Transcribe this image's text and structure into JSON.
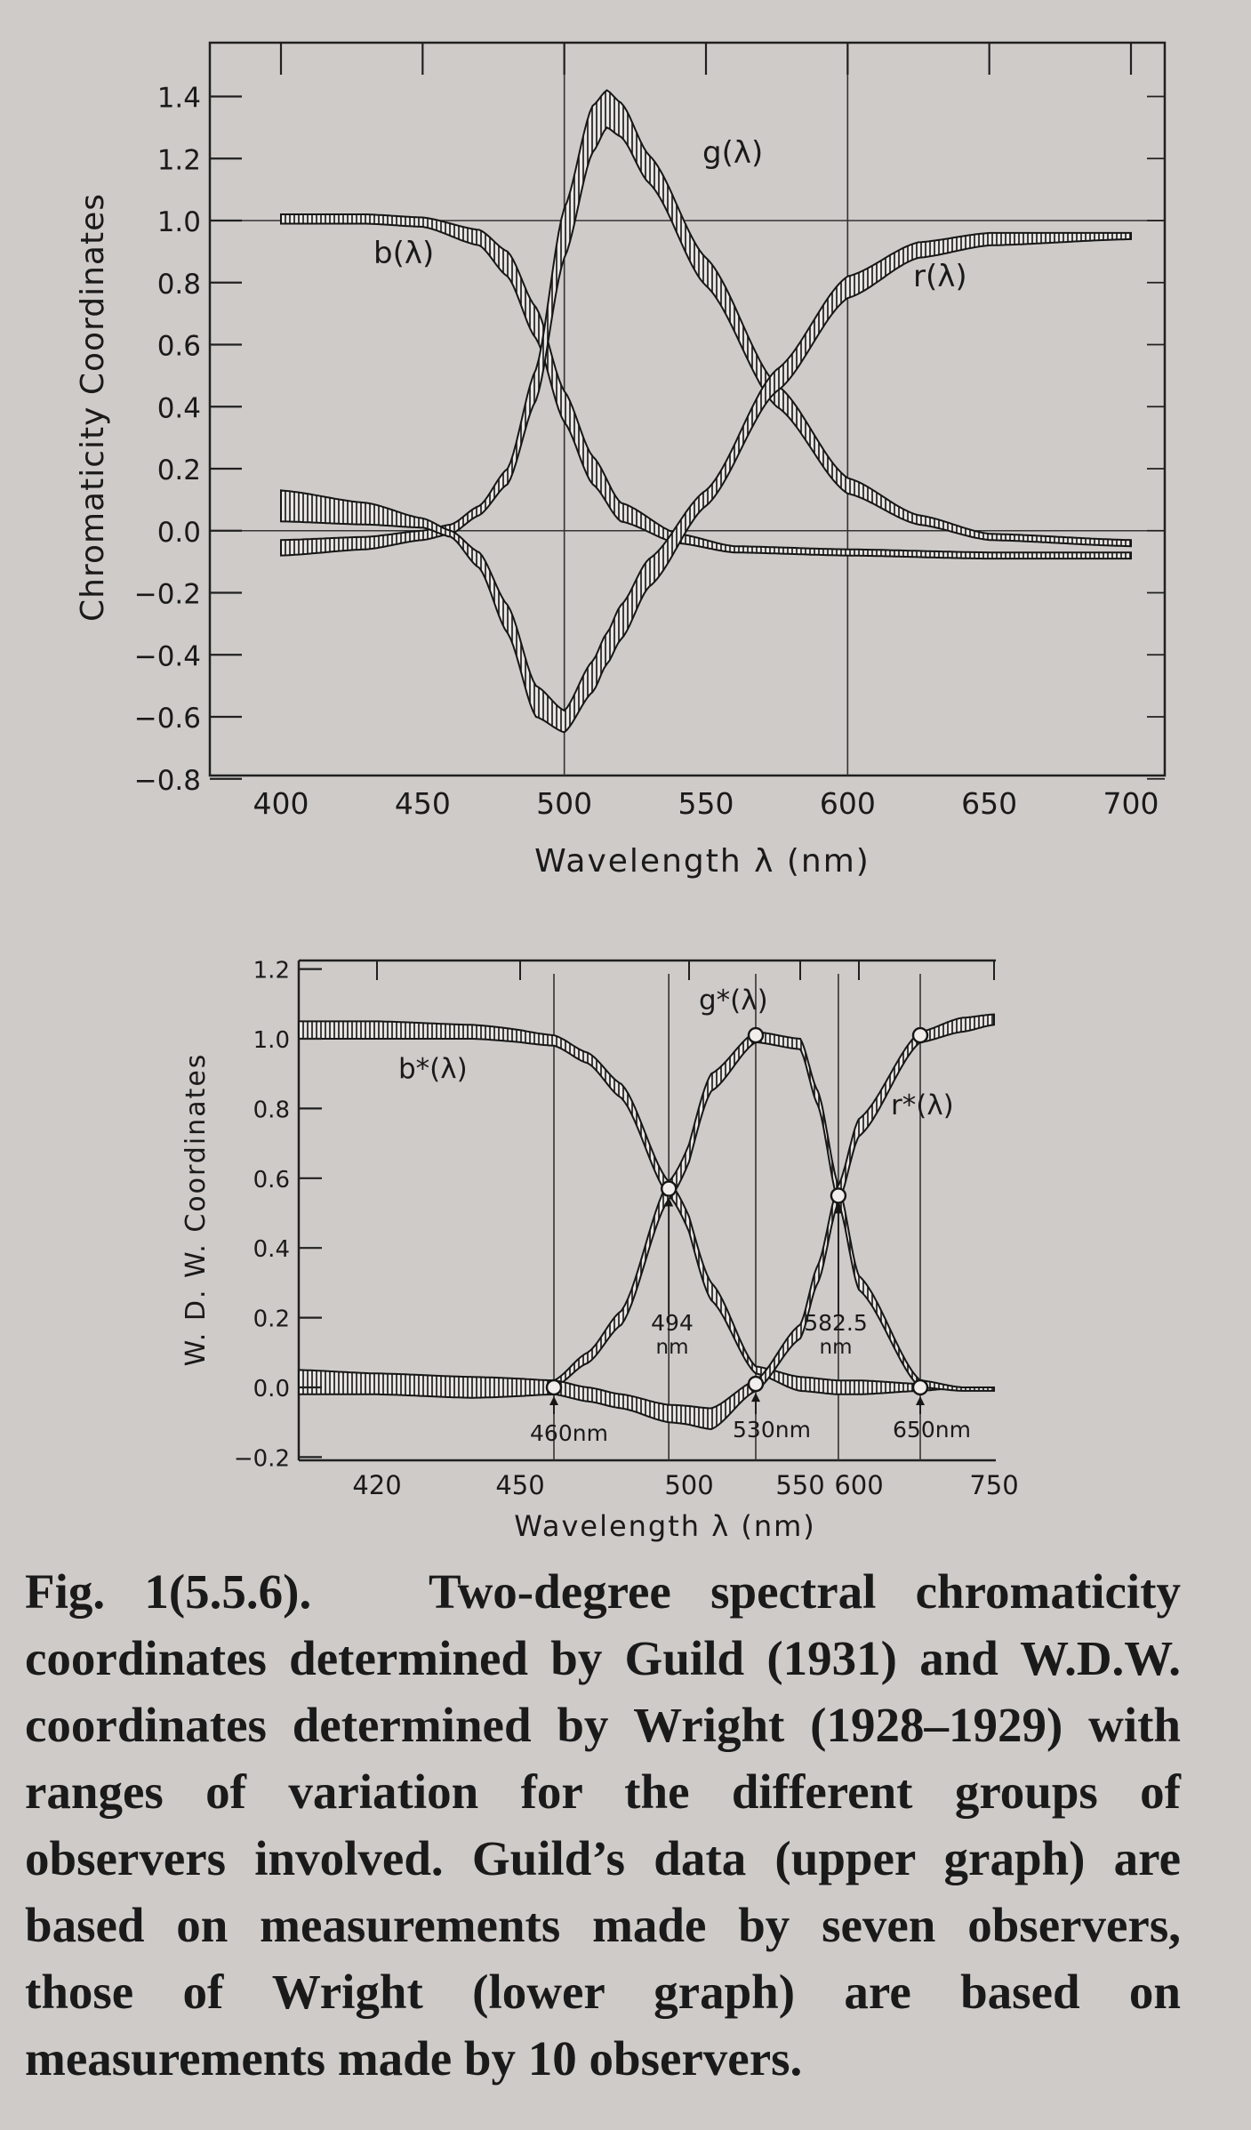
{
  "chart_data": [
    {
      "type": "line",
      "ylabel": "Chromaticity Coordinates",
      "xlabel": "Wavelength λ (nm)",
      "xlim": [
        400,
        700
      ],
      "ylim": [
        -0.8,
        1.4
      ],
      "xticks": [
        "400",
        "450",
        "500",
        "550",
        "600",
        "650",
        "700"
      ],
      "yticks": [
        "1.4",
        "1.2",
        "1.0",
        "0.8",
        "0.6",
        "0.4",
        "0.2",
        "0.0",
        "-0.2",
        "-0.4",
        "-0.6",
        "-0.8"
      ],
      "grid": "reference lines at x = 500 and 600, y = 0.0 and 1.0",
      "series": [
        {
          "name": "b(λ)",
          "x": [
            400,
            430,
            450,
            470,
            480,
            490,
            500,
            510,
            520,
            540,
            560,
            600,
            650,
            700
          ],
          "lower": [
            0.99,
            0.99,
            0.98,
            0.92,
            0.82,
            0.62,
            0.35,
            0.15,
            0.03,
            -0.04,
            -0.07,
            -0.08,
            -0.09,
            -0.09
          ],
          "upper": [
            1.02,
            1.02,
            1.01,
            0.97,
            0.9,
            0.72,
            0.45,
            0.24,
            0.09,
            -0.01,
            -0.05,
            -0.06,
            -0.07,
            -0.07
          ]
        },
        {
          "name": "g(λ)",
          "x": [
            400,
            430,
            450,
            460,
            470,
            480,
            490,
            500,
            510,
            515,
            520,
            530,
            550,
            575,
            600,
            625,
            650,
            700
          ],
          "lower": [
            -0.08,
            -0.06,
            -0.03,
            -0.01,
            0.05,
            0.15,
            0.42,
            0.88,
            1.22,
            1.3,
            1.27,
            1.12,
            0.79,
            0.4,
            0.12,
            0.02,
            -0.03,
            -0.05
          ],
          "upper": [
            -0.03,
            -0.02,
            0.0,
            0.02,
            0.08,
            0.2,
            0.52,
            1.04,
            1.37,
            1.42,
            1.38,
            1.21,
            0.88,
            0.47,
            0.17,
            0.05,
            -0.01,
            -0.03
          ]
        },
        {
          "name": "r(λ)",
          "x": [
            400,
            430,
            450,
            460,
            470,
            480,
            490,
            500,
            510,
            515,
            520,
            530,
            550,
            575,
            600,
            625,
            650,
            700
          ],
          "lower": [
            0.03,
            0.02,
            0.01,
            -0.02,
            -0.12,
            -0.33,
            -0.6,
            -0.65,
            -0.52,
            -0.43,
            -0.35,
            -0.18,
            0.08,
            0.45,
            0.75,
            0.88,
            0.92,
            0.94
          ],
          "upper": [
            0.13,
            0.09,
            0.04,
            0.0,
            -0.07,
            -0.24,
            -0.5,
            -0.58,
            -0.42,
            -0.33,
            -0.24,
            -0.09,
            0.13,
            0.52,
            0.82,
            0.93,
            0.96,
            0.96
          ]
        }
      ],
      "annotations": [
        "b(λ)",
        "g(λ)",
        "r(λ)"
      ]
    },
    {
      "type": "line",
      "ylabel": "W. D. W. Coordinates",
      "xlabel": "Wavelength λ (nm)",
      "xticks": [
        "420",
        "450",
        "500",
        "550",
        "600",
        "750"
      ],
      "yticks": [
        "1.2",
        "1.0",
        "0.8",
        "0.6",
        "0.4",
        "0.2",
        "0.0",
        "-0.2"
      ],
      "ylim": [
        -0.2,
        1.2
      ],
      "xlim": [
        400,
        750
      ],
      "grid": "reference lines at 460, 494, 530, 582.5 and 650 nm",
      "series": [
        {
          "name": "b*(λ)",
          "x": [
            400,
            420,
            440,
            460,
            470,
            480,
            494,
            510,
            530,
            550,
            582.5,
            600,
            650,
            700,
            750
          ],
          "lower": [
            1.0,
            1.0,
            1.0,
            0.98,
            0.93,
            0.83,
            0.55,
            0.25,
            0.04,
            -0.01,
            -0.02,
            -0.02,
            -0.01,
            0.0,
            0.0
          ],
          "upper": [
            1.05,
            1.05,
            1.04,
            1.01,
            0.96,
            0.87,
            0.59,
            0.3,
            0.06,
            0.03,
            0.02,
            0.02,
            0.01,
            0.0,
            0.0
          ]
        },
        {
          "name": "g*(λ)",
          "x": [
            400,
            420,
            440,
            460,
            470,
            480,
            494,
            510,
            530,
            550,
            565,
            582.5,
            600,
            650,
            700,
            750
          ],
          "lower": [
            -0.01,
            -0.01,
            -0.01,
            0.0,
            0.07,
            0.18,
            0.54,
            0.85,
            0.99,
            0.97,
            0.81,
            0.53,
            0.28,
            0.0,
            -0.01,
            -0.01
          ],
          "upper": [
            0.02,
            0.02,
            0.02,
            0.02,
            0.1,
            0.22,
            0.59,
            0.9,
            1.02,
            1.0,
            0.85,
            0.58,
            0.32,
            0.02,
            0.0,
            0.0
          ]
        },
        {
          "name": "r*(λ)",
          "x": [
            400,
            420,
            440,
            460,
            470,
            480,
            494,
            510,
            530,
            550,
            565,
            582.5,
            600,
            650,
            700,
            750
          ],
          "lower": [
            -0.02,
            -0.02,
            -0.03,
            -0.02,
            -0.04,
            -0.06,
            -0.1,
            -0.12,
            -0.01,
            0.14,
            0.3,
            0.53,
            0.72,
            0.99,
            1.02,
            1.04
          ],
          "upper": [
            0.05,
            0.04,
            0.03,
            0.02,
            0.0,
            -0.02,
            -0.05,
            -0.06,
            0.02,
            0.18,
            0.35,
            0.58,
            0.77,
            1.02,
            1.06,
            1.07
          ]
        }
      ],
      "crossings": [
        {
          "x": 460,
          "y": 0.0,
          "label": "460nm"
        },
        {
          "x": 494,
          "y": 0.57,
          "label": "494\nnm"
        },
        {
          "x": 530,
          "y": 1.01,
          "label": ""
        },
        {
          "x": 530,
          "y": 0.01,
          "label": "530nm"
        },
        {
          "x": 582.5,
          "y": 0.55,
          "label": "582.5\nnm"
        },
        {
          "x": 650,
          "y": 0.0,
          "label": "650nm"
        },
        {
          "x": 650,
          "y": 1.01,
          "label": ""
        }
      ],
      "annotations": [
        "b*(λ)",
        "g*(λ)",
        "r*(λ)"
      ]
    }
  ],
  "text": {
    "top_ylabel": "Chromaticity Coordinates",
    "top_xlabel": "Wavelength λ (nm)",
    "top_b": "b(λ)",
    "top_g": "g(λ)",
    "top_r": "r(λ)",
    "bot_ylabel": "W. D. W. Coordinates",
    "bot_xlabel": "Wavelength λ (nm)",
    "bot_b": "b*(λ)",
    "bot_g": "g*(λ)",
    "bot_r": "r*(λ)",
    "lbl_494_a": "494",
    "lbl_494_b": "nm",
    "lbl_5825_a": "582.5",
    "lbl_5825_b": "nm",
    "lbl_460": "460nm",
    "lbl_530": "530nm",
    "lbl_650": "650nm"
  },
  "caption": {
    "fig": "Fig. 1(5.5.6).",
    "body": "Two-degree spectral chromaticity coordinates determined by Guild (1931) and W.D.W. coordinates determined by Wright (1928–1929) with ranges of variation for the different groups of observers involved. Guild’s data (upper graph) are based on measurements made by seven observers, those of Wright (lower graph) are based on measurements made by 10 observers."
  }
}
